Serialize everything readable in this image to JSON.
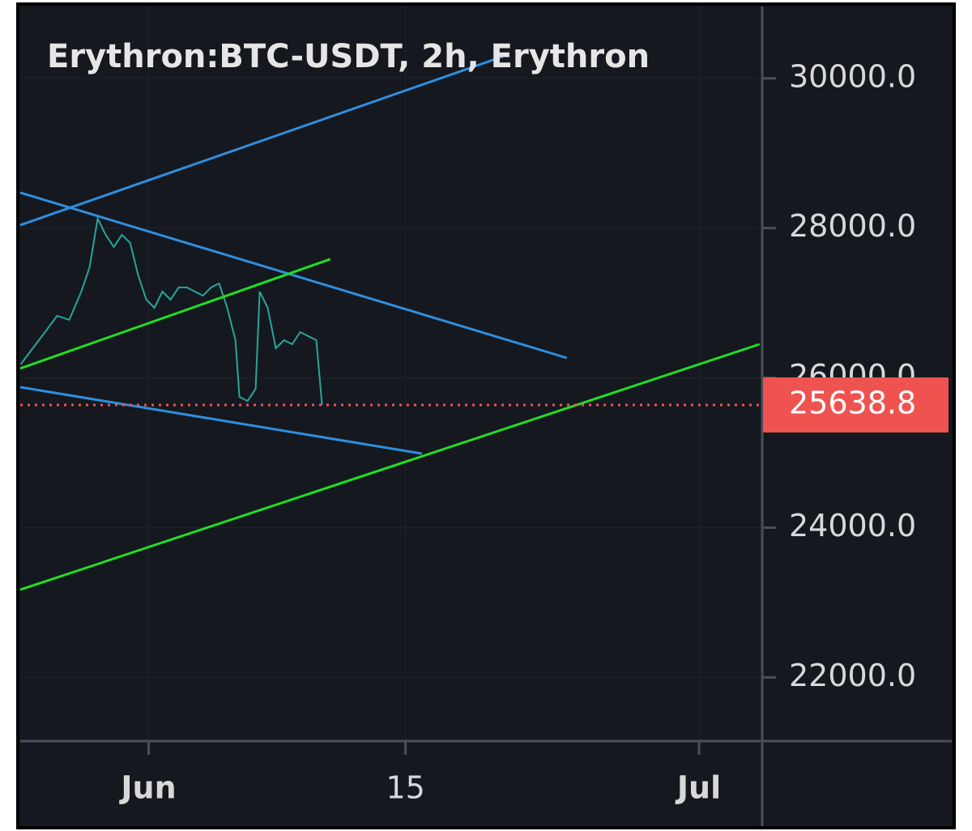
{
  "chart_data": {
    "type": "line",
    "title": "Erythron:BTC-USDT, 2h, Erythron",
    "xlim": [
      -7,
      33.4
    ],
    "xticks": [
      {
        "value": 0,
        "label": "Jun"
      },
      {
        "value": 14,
        "label": "15"
      },
      {
        "value": 30,
        "label": "Jul"
      }
    ],
    "ylim": [
      21150,
      30960
    ],
    "yticks": [
      {
        "value": 22000,
        "label": "22000.0"
      },
      {
        "value": 24000,
        "label": "24000.0"
      },
      {
        "value": 26000,
        "label": "26000.0"
      },
      {
        "value": 28000,
        "label": "28000.0"
      },
      {
        "value": 30000,
        "label": "30000.0"
      }
    ],
    "grid": true,
    "last_price": 25638.8,
    "last_price_color": "#ef5350",
    "series": [
      {
        "color": "#26a69a",
        "x": [
          -6.98,
          -6.32,
          -5.65,
          -4.99,
          -4.33,
          -3.67,
          -3.22,
          -2.78,
          -2.34,
          -1.9,
          -1.46,
          -1.01,
          -0.57,
          -0.13,
          0.31,
          0.75,
          1.19,
          1.63,
          2.08,
          2.52,
          2.96,
          3.4,
          3.84,
          4.28,
          4.73,
          4.95,
          5.39,
          5.83,
          6.05,
          6.49,
          6.93,
          7.38,
          7.82,
          8.26,
          8.7,
          9.14,
          9.45
        ],
        "values": [
          26180,
          26396,
          26612,
          26829,
          26775,
          27153,
          27478,
          28128,
          27911,
          27749,
          27911,
          27803,
          27370,
          27045,
          26937,
          27153,
          27045,
          27208,
          27208,
          27153,
          27099,
          27208,
          27262,
          26937,
          26504,
          25747,
          25692,
          25855,
          27153,
          26937,
          26396,
          26504,
          26450,
          26612,
          26558,
          26504,
          25638.8
        ]
      },
      {
        "color": "#2e8fe0",
        "x": [
          -7,
          19.3
        ],
        "values": [
          28041,
          30292
        ]
      },
      {
        "color": "#2e8fe0",
        "x": [
          -7,
          22.8
        ],
        "values": [
          28474,
          26266
        ]
      },
      {
        "color": "#2e8fe0",
        "x": [
          -7,
          14.9
        ],
        "values": [
          25877,
          24989
        ]
      },
      {
        "color": "#22dd22",
        "x": [
          -7,
          9.9
        ],
        "values": [
          26126,
          27587
        ]
      },
      {
        "color": "#22dd22",
        "x": [
          -7,
          33.3
        ],
        "values": [
          23171,
          26450
        ]
      }
    ]
  }
}
